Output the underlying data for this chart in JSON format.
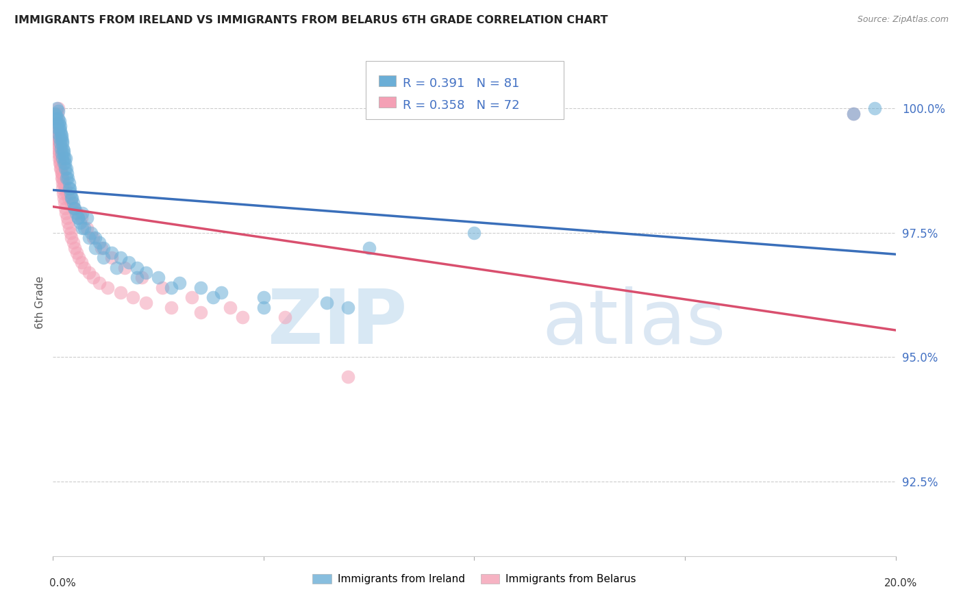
{
  "title": "IMMIGRANTS FROM IRELAND VS IMMIGRANTS FROM BELARUS 6TH GRADE CORRELATION CHART",
  "source": "Source: ZipAtlas.com",
  "ylabel": "6th Grade",
  "ytick_values": [
    92.5,
    95.0,
    97.5,
    100.0
  ],
  "xlim": [
    0.0,
    20.0
  ],
  "ylim": [
    91.0,
    101.2
  ],
  "legend_ireland": "Immigrants from Ireland",
  "legend_belarus": "Immigrants from Belarus",
  "R_ireland": 0.391,
  "N_ireland": 81,
  "R_belarus": 0.358,
  "N_belarus": 72,
  "ireland_color": "#6baed6",
  "belarus_color": "#f4a0b5",
  "ireland_line_color": "#3a6fba",
  "belarus_line_color": "#d94f6e",
  "watermark_zip": "ZIP",
  "watermark_atlas": "atlas",
  "ireland_x": [
    0.05,
    0.08,
    0.1,
    0.12,
    0.13,
    0.14,
    0.15,
    0.16,
    0.17,
    0.18,
    0.19,
    0.2,
    0.21,
    0.22,
    0.23,
    0.24,
    0.25,
    0.26,
    0.27,
    0.28,
    0.3,
    0.32,
    0.34,
    0.36,
    0.38,
    0.4,
    0.42,
    0.45,
    0.48,
    0.5,
    0.55,
    0.6,
    0.65,
    0.7,
    0.75,
    0.8,
    0.9,
    1.0,
    1.1,
    1.2,
    1.4,
    1.6,
    1.8,
    2.0,
    2.2,
    2.5,
    3.0,
    3.5,
    4.0,
    5.0,
    6.5,
    7.0,
    0.06,
    0.09,
    0.11,
    0.13,
    0.15,
    0.17,
    0.19,
    0.21,
    0.23,
    0.25,
    0.28,
    0.32,
    0.38,
    0.44,
    0.52,
    0.6,
    0.7,
    0.85,
    1.0,
    1.2,
    1.5,
    2.0,
    2.8,
    3.8,
    5.0,
    7.5,
    10.0,
    19.0,
    19.5
  ],
  "ireland_y": [
    99.9,
    99.85,
    100.0,
    99.95,
    99.8,
    99.7,
    99.75,
    99.6,
    99.65,
    99.55,
    99.5,
    99.4,
    99.45,
    99.3,
    99.35,
    99.2,
    99.15,
    99.1,
    99.0,
    98.9,
    99.0,
    98.8,
    98.7,
    98.6,
    98.5,
    98.4,
    98.3,
    98.2,
    98.1,
    98.0,
    97.9,
    97.8,
    97.7,
    97.9,
    97.6,
    97.8,
    97.5,
    97.4,
    97.3,
    97.2,
    97.1,
    97.0,
    96.9,
    96.8,
    96.7,
    96.6,
    96.5,
    96.4,
    96.3,
    96.2,
    96.1,
    96.0,
    99.8,
    99.7,
    99.6,
    99.5,
    99.4,
    99.3,
    99.2,
    99.1,
    99.0,
    98.9,
    98.8,
    98.6,
    98.4,
    98.2,
    98.0,
    97.8,
    97.6,
    97.4,
    97.2,
    97.0,
    96.8,
    96.6,
    96.4,
    96.2,
    96.0,
    97.2,
    97.5,
    99.9,
    100.0
  ],
  "belarus_x": [
    0.05,
    0.07,
    0.09,
    0.1,
    0.11,
    0.12,
    0.13,
    0.14,
    0.15,
    0.16,
    0.17,
    0.18,
    0.19,
    0.2,
    0.21,
    0.22,
    0.23,
    0.24,
    0.25,
    0.27,
    0.29,
    0.31,
    0.33,
    0.35,
    0.38,
    0.41,
    0.44,
    0.48,
    0.52,
    0.56,
    0.62,
    0.68,
    0.75,
    0.85,
    0.95,
    1.1,
    1.3,
    1.6,
    1.9,
    2.2,
    2.8,
    3.5,
    4.5,
    0.06,
    0.08,
    0.1,
    0.12,
    0.14,
    0.16,
    0.18,
    0.2,
    0.22,
    0.25,
    0.28,
    0.32,
    0.37,
    0.43,
    0.5,
    0.58,
    0.68,
    0.8,
    0.95,
    1.15,
    1.4,
    1.7,
    2.1,
    2.6,
    3.3,
    4.2,
    5.5,
    7.0,
    19.0
  ],
  "belarus_y": [
    99.5,
    99.6,
    99.7,
    99.8,
    99.9,
    100.0,
    99.4,
    99.3,
    99.2,
    99.1,
    99.0,
    98.9,
    98.8,
    98.7,
    98.6,
    98.5,
    98.4,
    98.3,
    98.2,
    98.1,
    98.0,
    97.9,
    97.8,
    97.7,
    97.6,
    97.5,
    97.4,
    97.3,
    97.2,
    97.1,
    97.0,
    96.9,
    96.8,
    96.7,
    96.6,
    96.5,
    96.4,
    96.3,
    96.2,
    96.1,
    96.0,
    95.9,
    95.8,
    99.4,
    99.3,
    99.2,
    99.1,
    99.0,
    98.9,
    98.8,
    98.7,
    98.6,
    98.5,
    98.4,
    98.3,
    98.2,
    98.1,
    98.0,
    97.9,
    97.8,
    97.6,
    97.4,
    97.2,
    97.0,
    96.8,
    96.6,
    96.4,
    96.2,
    96.0,
    95.8,
    94.6,
    99.9
  ]
}
